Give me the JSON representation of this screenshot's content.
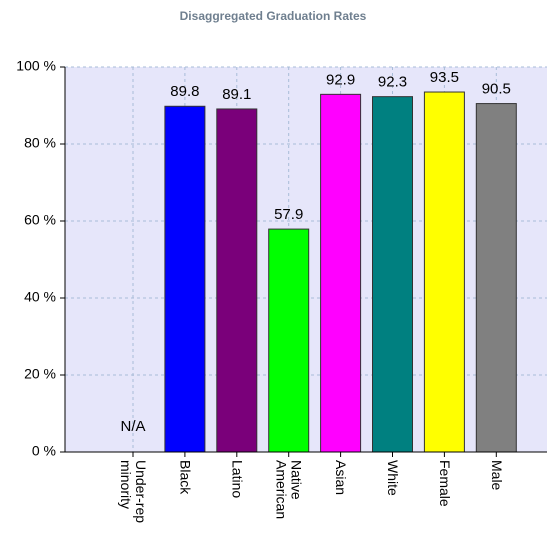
{
  "chart_data": {
    "type": "bar",
    "title": "Disaggregated Graduation Rates",
    "categories": [
      "Under-rep minority",
      "Black",
      "Latino",
      "Native American",
      "Asian",
      "White",
      "Female",
      "Male"
    ],
    "values": [
      null,
      89.8,
      89.1,
      57.9,
      92.9,
      92.3,
      93.5,
      90.5
    ],
    "value_labels": [
      "N/A",
      "89.8",
      "89.1",
      "57.9",
      "92.9",
      "92.3",
      "93.5",
      "90.5"
    ],
    "colors": [
      "#808080",
      "#0000ff",
      "#7a007a",
      "#00ff00",
      "#ff00ff",
      "#008080",
      "#ffff00",
      "#808080"
    ],
    "ylim": [
      0,
      100
    ],
    "yticks": [
      {
        "value": 0,
        "label": "0 %"
      },
      {
        "value": 20,
        "label": "20 %"
      },
      {
        "value": 40,
        "label": "40 %"
      },
      {
        "value": 60,
        "label": "60 %"
      },
      {
        "value": 80,
        "label": "80 %"
      },
      {
        "value": 100,
        "label": "100 %"
      }
    ],
    "grid": true
  }
}
